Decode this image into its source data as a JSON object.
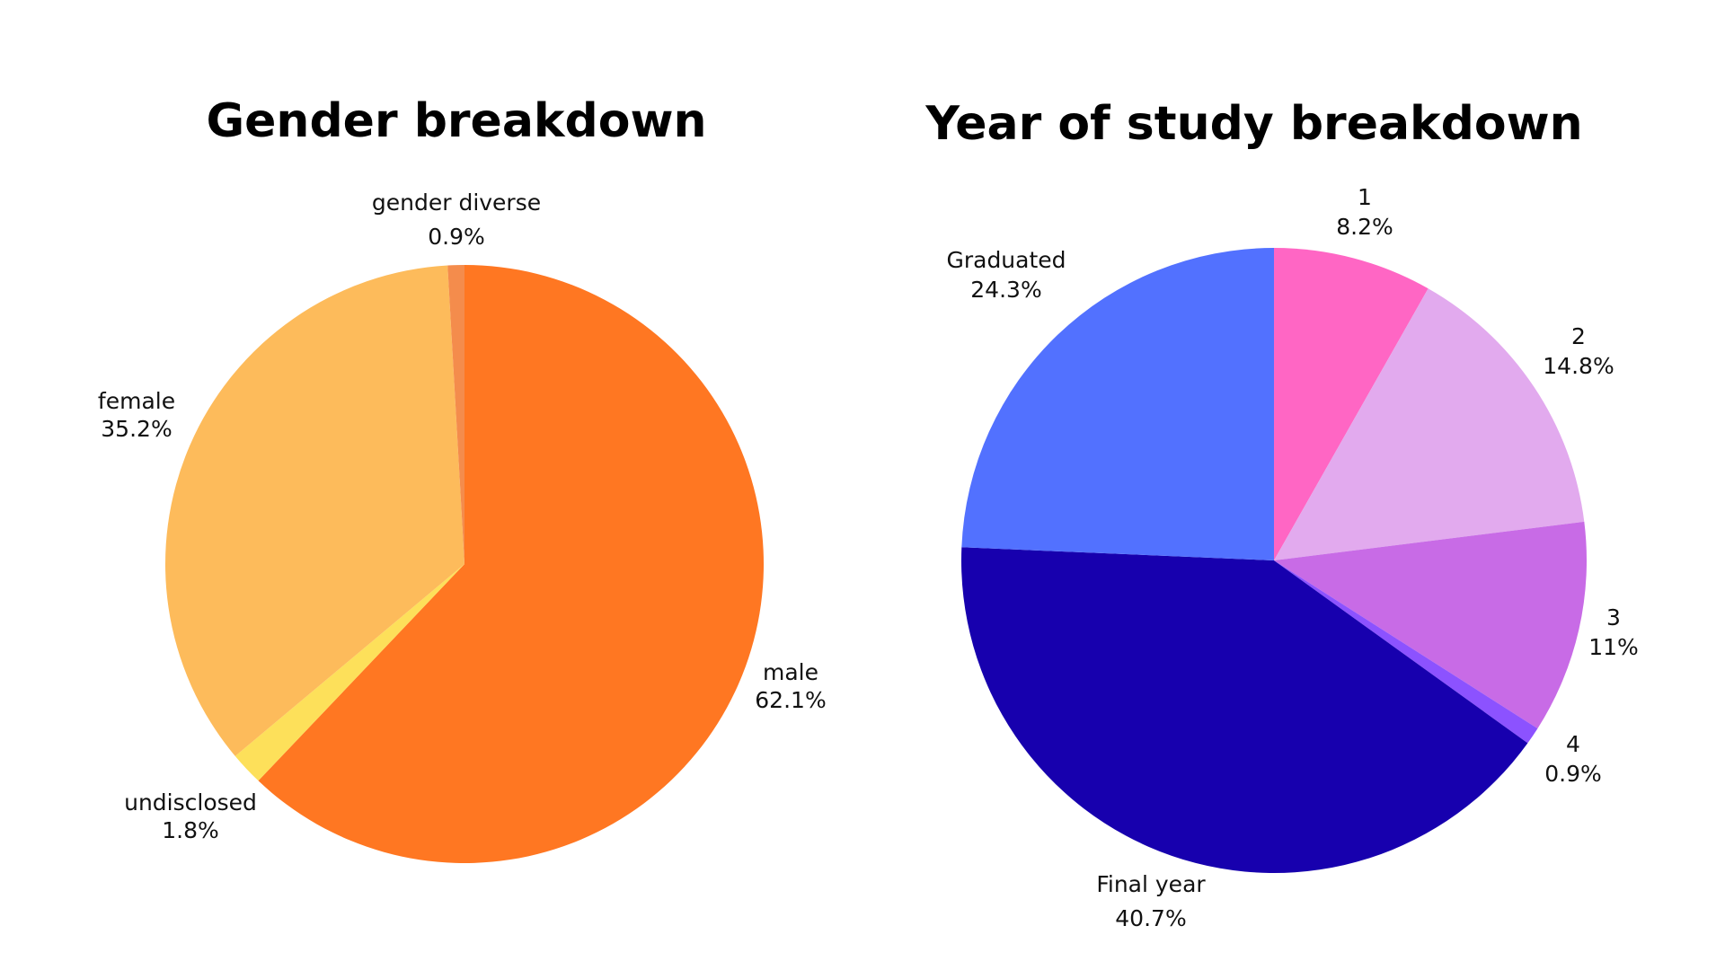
{
  "chart_data": [
    {
      "type": "pie",
      "title": "Gender breakdown",
      "start_angle_deg": 0,
      "direction": "clockwise",
      "slices": [
        {
          "label": "male",
          "value_label": "62.1%",
          "value": 62.1,
          "color": "#FF7722"
        },
        {
          "label": "undisclosed",
          "value_label": "1.8%",
          "value": 1.8,
          "color": "#FDE05A"
        },
        {
          "label": "female",
          "value_label": "35.2%",
          "value": 35.2,
          "color": "#FDBB5B"
        },
        {
          "label": "gender diverse",
          "value_label": "0.9%",
          "value": 0.9,
          "color": "#F48C4C"
        }
      ]
    },
    {
      "type": "pie",
      "title": "Year of study breakdown",
      "start_angle_deg": 0,
      "direction": "clockwise",
      "slices": [
        {
          "label": "1",
          "value_label": "8.2%",
          "value": 8.2,
          "color": "#FF66C4"
        },
        {
          "label": "2",
          "value_label": "14.8%",
          "value": 14.8,
          "color": "#E2AAEE"
        },
        {
          "label": "3",
          "value_label": "11%",
          "value": 11.0,
          "color": "#C86BE6"
        },
        {
          "label": "4",
          "value_label": "0.9%",
          "value": 0.9,
          "color": "#8C52FF"
        },
        {
          "label": "Final year",
          "value_label": "40.7%",
          "value": 40.7,
          "color": "#1700AE"
        },
        {
          "label": "Graduated",
          "value_label": "24.3%",
          "value": 24.3,
          "color": "#5271FF"
        }
      ]
    }
  ]
}
